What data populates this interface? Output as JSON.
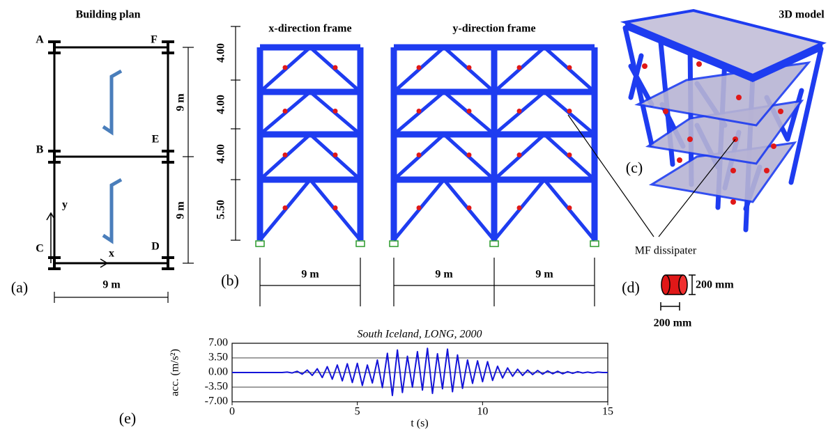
{
  "panel_a": {
    "title": "Building plan",
    "grid_labels": [
      "A",
      "F",
      "B",
      "E",
      "C",
      "D"
    ],
    "axis_y": "y",
    "axis_x": "x",
    "dim_right_top": "9 m",
    "dim_right_bottom": "9 m",
    "dim_bottom": "9 m",
    "label": "(a)"
  },
  "panel_b": {
    "x_frame_title": "x-direction frame",
    "y_frame_title": "y-direction frame",
    "story_heights": [
      "4.00",
      "4.00",
      "4.00",
      "5.50"
    ],
    "x_frame_width": "9 m",
    "y_frame_widths": [
      "9 m",
      "9 m"
    ],
    "label": "(b)"
  },
  "panel_c": {
    "title": "3D model",
    "label": "(c)",
    "callout": "MF dissipater"
  },
  "panel_d": {
    "label": "(d)",
    "height": "200 mm",
    "diameter": "200 mm"
  },
  "panel_e": {
    "label": "(e)"
  },
  "chart_data": {
    "type": "line",
    "title": "South Iceland, LONG, 2000",
    "x_label": "t (s)",
    "y_label": "acc. (m/s²)",
    "color": "#1414d8",
    "xlim": [
      0,
      15
    ],
    "ylim": [
      -7,
      7
    ],
    "xticks": [
      0,
      5,
      10,
      15
    ],
    "yticks": [
      {
        "value": 7,
        "label": "7.00"
      },
      {
        "value": 3.5,
        "label": "3.50"
      },
      {
        "value": 0,
        "label": "0.00"
      },
      {
        "value": -3.5,
        "label": "-3.50"
      },
      {
        "value": -7,
        "label": "-7.00"
      }
    ],
    "grid": true,
    "x": [
      0,
      0.2,
      0.4,
      0.6,
      0.8,
      1.0,
      1.2,
      1.4,
      1.6,
      1.8,
      2.0,
      2.2,
      2.4,
      2.6,
      2.8,
      3.0,
      3.2,
      3.4,
      3.6,
      3.8,
      4.0,
      4.2,
      4.4,
      4.6,
      4.8,
      5.0,
      5.2,
      5.4,
      5.6,
      5.8,
      6.0,
      6.2,
      6.4,
      6.6,
      6.8,
      7.0,
      7.2,
      7.4,
      7.6,
      7.8,
      8.0,
      8.2,
      8.4,
      8.6,
      8.8,
      9.0,
      9.2,
      9.4,
      9.6,
      9.8,
      10.0,
      10.2,
      10.4,
      10.6,
      10.8,
      11.0,
      11.2,
      11.4,
      11.6,
      11.8,
      12.0,
      12.2,
      12.4,
      12.6,
      12.8,
      13.0,
      13.2,
      13.4,
      13.6,
      13.8,
      14.0,
      14.2,
      14.4,
      14.6,
      14.8,
      15.0
    ],
    "values": [
      0,
      0,
      0,
      0,
      0,
      0,
      0,
      0,
      0,
      0,
      0,
      0.1,
      -0.1,
      0.3,
      -0.4,
      0.6,
      -0.7,
      0.9,
      -1.2,
      1.4,
      -1.6,
      1.8,
      -2.0,
      2.1,
      -2.4,
      2.2,
      -3.1,
      1.8,
      -2.5,
      3.0,
      -3.6,
      4.6,
      -5.5,
      5.4,
      -4.8,
      3.9,
      -3.5,
      5.0,
      -4.2,
      5.8,
      -5.0,
      4.5,
      -3.9,
      5.6,
      -4.6,
      4.2,
      -3.8,
      3.0,
      -2.6,
      2.8,
      -2.2,
      2.6,
      -1.9,
      1.5,
      -1.3,
      1.1,
      -0.9,
      0.8,
      -0.7,
      0.6,
      -0.5,
      0.5,
      -0.4,
      0.4,
      -0.3,
      0.3,
      -0.3,
      0.2,
      -0.2,
      0.2,
      -0.1,
      0.1,
      -0.1,
      0.1,
      0,
      0
    ]
  }
}
